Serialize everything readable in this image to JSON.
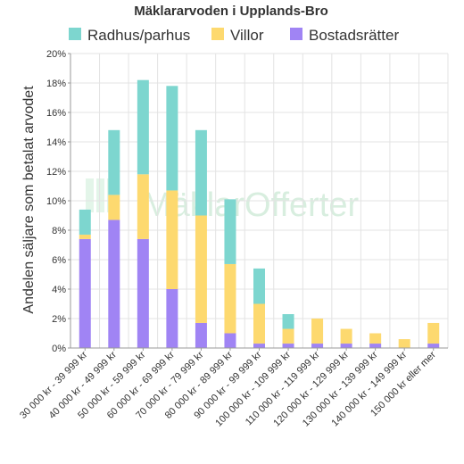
{
  "chart_data": {
    "type": "bar",
    "stacked": true,
    "title": "Mäklararvoden i Upplands-Bro",
    "ylabel": "Andelen säljare som betalat arvodet",
    "xlabel": "",
    "ylim": [
      0,
      20
    ],
    "yticks": [
      "0%",
      "2%",
      "4%",
      "6%",
      "8%",
      "10%",
      "12%",
      "14%",
      "16%",
      "18%",
      "20%"
    ],
    "grid": true,
    "legend_position": "top",
    "categories": [
      "30 000 kr - 39 999 kr",
      "40 000 kr - 49 999 kr",
      "50 000 kr - 59 999 kr",
      "60 000 kr - 69 999 kr",
      "70 000 kr - 79 999 kr",
      "80 000 kr - 89 999 kr",
      "90 000 kr - 99 999 kr",
      "100 000 kr - 109 999 kr",
      "110 000 kr - 119 999 kr",
      "120 000 kr - 129 999 kr",
      "130 000 kr - 139 999 kr",
      "140 000 kr - 149 999 kr",
      "150 000 kr eller mer"
    ],
    "series": [
      {
        "name": "Bostadsrätter",
        "color": "#a084f4",
        "values": [
          7.4,
          8.7,
          7.4,
          4.0,
          1.7,
          1.0,
          0.3,
          0.3,
          0.3,
          0.3,
          0.3,
          0.0,
          0.3
        ]
      },
      {
        "name": "Villor",
        "color": "#fdd96f",
        "values": [
          0.3,
          1.7,
          4.4,
          6.7,
          7.3,
          4.7,
          2.7,
          1.0,
          1.7,
          1.0,
          0.7,
          0.6,
          1.4
        ]
      },
      {
        "name": "Radhus/parhus",
        "color": "#7dd6cf",
        "values": [
          1.7,
          4.4,
          6.4,
          7.1,
          5.8,
          4.4,
          2.4,
          1.0,
          0.0,
          0.0,
          0.0,
          0.0,
          0.0
        ]
      }
    ],
    "legend_order": [
      "Radhus/parhus",
      "Villor",
      "Bostadsrätter"
    ],
    "watermark": "MäklarOfferter",
    "watermark_color": "#7fd19c"
  }
}
